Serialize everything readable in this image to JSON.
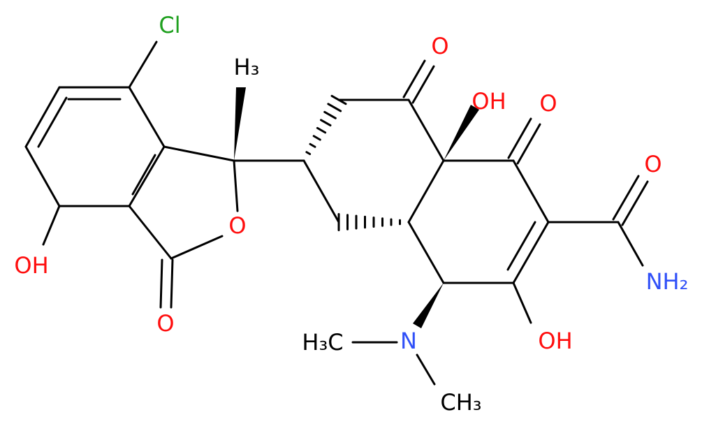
{
  "labels": [
    "Cl",
    "H₃",
    "OH",
    "O",
    "O",
    "O",
    "OH",
    "O",
    "O",
    "NH₂",
    "OH",
    "N",
    "H₃C",
    "CH₃"
  ]
}
